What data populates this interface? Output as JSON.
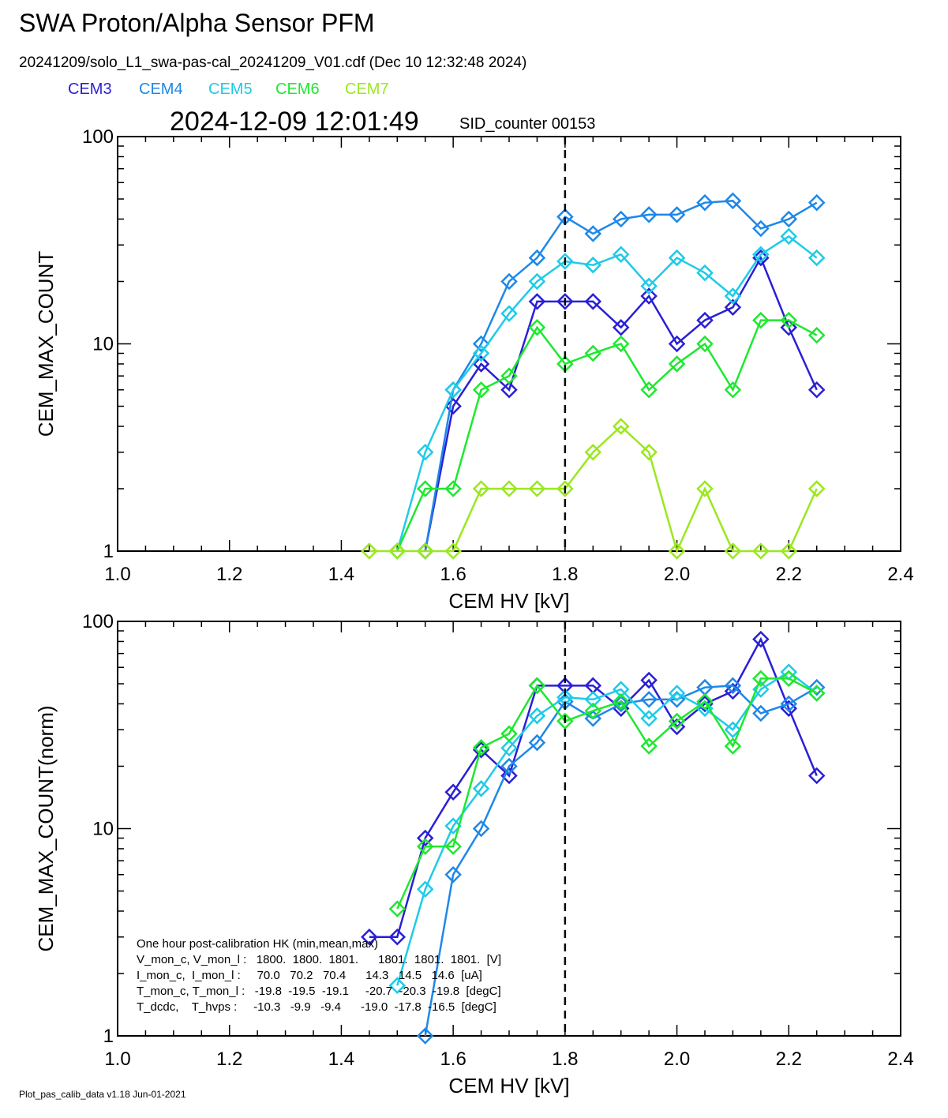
{
  "header": {
    "title": "SWA Proton/Alpha Sensor PFM",
    "file_info": "20241209/solo_L1_swa-pas-cal_20241209_V01.cdf  (Dec 10 12:32:48 2024)",
    "timestamp": "2024-12-09 12:01:49",
    "sid_counter": "SID_counter 00153"
  },
  "footer": {
    "note": "Plot_pas_calib_data v1.18 Jun-01-2021"
  },
  "legend": [
    {
      "name": "CEM3",
      "color": "#2a1fd6"
    },
    {
      "name": "CEM4",
      "color": "#1e88e8"
    },
    {
      "name": "CEM5",
      "color": "#1ecbe8"
    },
    {
      "name": "CEM6",
      "color": "#1ee82f"
    },
    {
      "name": "CEM7",
      "color": "#9ae81e"
    }
  ],
  "hk_box": {
    "lines": [
      "One hour post-calibration HK (min,mean,max)",
      "V_mon_c, V_mon_l :   1800.  1800.  1801.      1801.  1801.  1801.  [V]",
      "I_mon_c,  I_mon_l :     70.0   70.2   70.4      14.3   14.5   14.6  [uA]",
      "T_mon_c, T_mon_l :   -19.8  -19.5  -19.1     -20.7  -20.3  -19.8  [degC]",
      "T_dcdc,    T_hvps :     -10.3   -9.9   -9.4      -19.0  -17.8  -16.5  [degC]"
    ]
  },
  "chart_data": [
    {
      "type": "line",
      "xlabel": "CEM HV [kV]",
      "ylabel": "CEM_MAX_COUNT",
      "xlim": [
        1.0,
        2.4
      ],
      "ylim": [
        1,
        100
      ],
      "yscale": "log",
      "xticks": [
        "1.0",
        "1.2",
        "1.4",
        "1.6",
        "1.8",
        "2.0",
        "2.2",
        "2.4"
      ],
      "yticks": [
        "1",
        "10",
        "100"
      ],
      "marker": "diamond",
      "vline_x": 1.8,
      "series": [
        {
          "name": "CEM3",
          "x": [
            1.55,
            1.6,
            1.65,
            1.7,
            1.75,
            1.8,
            1.85,
            1.9,
            1.95,
            2.0,
            2.05,
            2.1,
            2.15,
            2.2,
            2.25
          ],
          "y": [
            1,
            5,
            8,
            6,
            16,
            16,
            16,
            12,
            17,
            10,
            13,
            15,
            26,
            12,
            6
          ]
        },
        {
          "name": "CEM4",
          "x": [
            1.55,
            1.6,
            1.65,
            1.7,
            1.75,
            1.8,
            1.85,
            1.9,
            1.95,
            2.0,
            2.05,
            2.1,
            2.15,
            2.2,
            2.25
          ],
          "y": [
            1,
            6,
            10,
            20,
            26,
            41,
            34,
            40,
            42,
            42,
            48,
            49,
            36,
            40,
            48
          ]
        },
        {
          "name": "CEM5",
          "x": [
            1.5,
            1.55,
            1.6,
            1.65,
            1.7,
            1.75,
            1.8,
            1.85,
            1.9,
            1.95,
            2.0,
            2.05,
            2.1,
            2.15,
            2.2,
            2.25
          ],
          "y": [
            1,
            3,
            6,
            9,
            14,
            20,
            25,
            24,
            27,
            19,
            26,
            22,
            17,
            27,
            33,
            26
          ]
        },
        {
          "name": "CEM6",
          "x": [
            1.5,
            1.55,
            1.6,
            1.65,
            1.7,
            1.75,
            1.8,
            1.85,
            1.9,
            1.95,
            2.0,
            2.05,
            2.1,
            2.15,
            2.2,
            2.25
          ],
          "y": [
            1,
            2,
            2,
            6,
            7,
            12,
            8,
            9,
            10,
            6,
            8,
            10,
            6,
            13,
            13,
            11
          ]
        },
        {
          "name": "CEM7",
          "x": [
            1.45,
            1.5,
            1.55,
            1.6,
            1.65,
            1.7,
            1.75,
            1.8,
            1.85,
            1.9,
            1.95,
            2.0,
            2.05,
            2.1,
            2.15,
            2.2,
            2.25
          ],
          "y": [
            1,
            1,
            1,
            1,
            2,
            2,
            2,
            2,
            3,
            4,
            3,
            1,
            2,
            1,
            1,
            1,
            2
          ]
        }
      ]
    },
    {
      "type": "line",
      "xlabel": "CEM HV [kV]",
      "ylabel": "CEM_MAX_COUNT(norm)",
      "xlim": [
        1.0,
        2.4
      ],
      "ylim": [
        1,
        100
      ],
      "yscale": "log",
      "xticks": [
        "1.0",
        "1.2",
        "1.4",
        "1.6",
        "1.8",
        "2.0",
        "2.2",
        "2.4"
      ],
      "yticks": [
        "1",
        "10",
        "100"
      ],
      "marker": "diamond",
      "vline_x": 1.8,
      "series": [
        {
          "name": "CEM3",
          "x": [
            1.45,
            1.5,
            1.55,
            1.6,
            1.65,
            1.7,
            1.75,
            1.8,
            1.85,
            1.9,
            1.95,
            2.0,
            2.05,
            2.1,
            2.15,
            2.2,
            2.25
          ],
          "y": [
            3,
            3,
            9,
            15,
            24,
            18,
            49,
            49,
            49,
            38,
            52,
            31,
            40,
            46,
            82,
            38,
            18
          ]
        },
        {
          "name": "CEM4",
          "x": [
            1.55,
            1.6,
            1.65,
            1.7,
            1.75,
            1.8,
            1.85,
            1.9,
            1.95,
            2.0,
            2.05,
            2.1,
            2.15,
            2.2,
            2.25
          ],
          "y": [
            1,
            6,
            10,
            20,
            26,
            41,
            34,
            40,
            42,
            42,
            48,
            49,
            36,
            40,
            48
          ]
        },
        {
          "name": "CEM5",
          "x": [
            1.5,
            1.55,
            1.6,
            1.65,
            1.7,
            1.75,
            1.8,
            1.85,
            1.9,
            1.95,
            2.0,
            2.05,
            2.1,
            2.15,
            2.2,
            2.25
          ],
          "y": [
            1.75,
            5.1,
            10.3,
            15.6,
            24.5,
            35,
            43,
            42,
            47,
            34,
            45,
            38,
            30,
            47,
            57,
            45
          ]
        },
        {
          "name": "CEM6",
          "x": [
            1.5,
            1.55,
            1.6,
            1.65,
            1.7,
            1.75,
            1.8,
            1.85,
            1.9,
            1.95,
            2.0,
            2.05,
            2.1,
            2.15,
            2.2,
            2.25
          ],
          "y": [
            4.1,
            8.2,
            8.2,
            24.6,
            28.7,
            49,
            33,
            37,
            41,
            25,
            33,
            41,
            25,
            53,
            53,
            45
          ]
        }
      ]
    }
  ]
}
